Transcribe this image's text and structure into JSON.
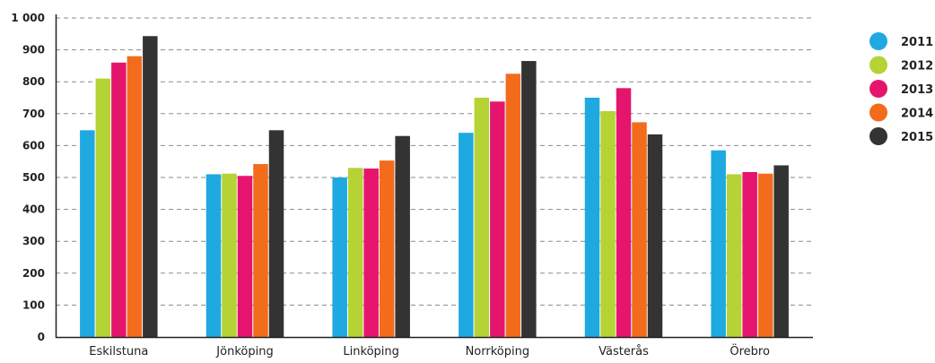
{
  "chart_data": {
    "type": "bar",
    "categories": [
      "Eskilstuna",
      "Jönköping",
      "Linköping",
      "Norrköping",
      "Västerås",
      "Örebro"
    ],
    "series": [
      {
        "name": "2011",
        "color": "#1ea9e1",
        "values": [
          648,
          510,
          500,
          640,
          750,
          585
        ]
      },
      {
        "name": "2012",
        "color": "#b5d334",
        "values": [
          810,
          512,
          530,
          750,
          708,
          510
        ]
      },
      {
        "name": "2013",
        "color": "#e5156e",
        "values": [
          860,
          505,
          528,
          738,
          780,
          517
        ]
      },
      {
        "name": "2014",
        "color": "#f26c1c",
        "values": [
          880,
          542,
          553,
          825,
          673,
          512
        ]
      },
      {
        "name": "2015",
        "color": "#333333",
        "values": [
          943,
          648,
          630,
          865,
          635,
          538
        ]
      }
    ],
    "y_ticks": [
      "0",
      "100",
      "200",
      "300",
      "400",
      "500",
      "600",
      "700",
      "800",
      "900",
      "1 000"
    ],
    "ylim": [
      0,
      1000
    ],
    "grid": true,
    "grid_style": "dashed",
    "legend_position": "right",
    "title": "",
    "xlabel": "",
    "ylabel": ""
  }
}
